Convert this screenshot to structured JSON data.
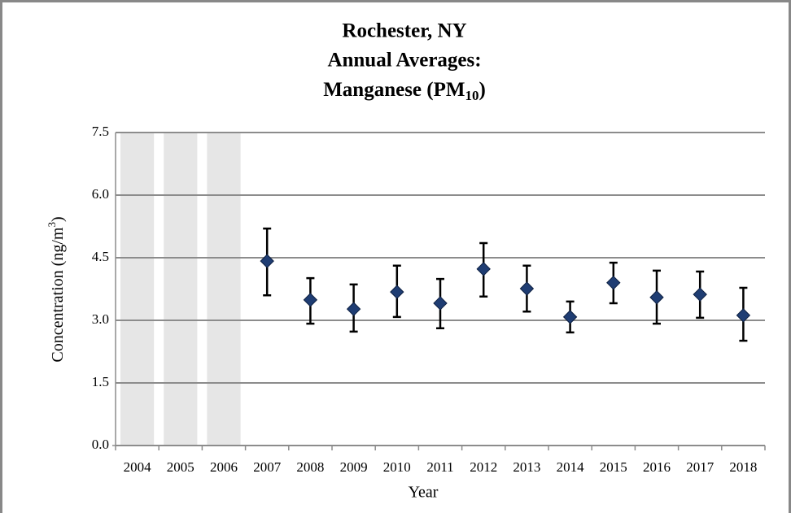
{
  "chart_data": {
    "type": "scatter",
    "title": [
      "Rochester, NY",
      "Annual Averages:",
      "Manganese (PM"
    ],
    "title_subscript": "10",
    "title_suffix": ")",
    "y_label": "Concentration (ng/m",
    "y_label_superscript": "3",
    "y_label_suffix": ")",
    "x_label": "Year",
    "categories": [
      "2004",
      "2005",
      "2006",
      "2007",
      "2008",
      "2009",
      "2010",
      "2011",
      "2012",
      "2013",
      "2014",
      "2015",
      "2016",
      "2017",
      "2018"
    ],
    "values": [
      null,
      null,
      null,
      4.42,
      3.49,
      3.27,
      3.68,
      3.41,
      4.23,
      3.76,
      3.08,
      3.9,
      3.55,
      3.62,
      3.12
    ],
    "error_low": [
      null,
      null,
      null,
      3.6,
      2.92,
      2.73,
      3.08,
      2.81,
      3.57,
      3.21,
      2.71,
      3.41,
      2.92,
      3.06,
      2.51
    ],
    "error_high": [
      null,
      null,
      null,
      5.2,
      4.01,
      3.86,
      4.31,
      3.99,
      4.85,
      4.31,
      3.45,
      4.38,
      4.19,
      4.17,
      3.78
    ],
    "color": "#1f3d73",
    "shading_color": "#e6e6e6",
    "ylim": [
      0,
      7.5
    ],
    "yticks": [
      {
        "value": 0,
        "label": "0.0"
      },
      1.5,
      {
        "value": 3,
        "label": "3.0"
      },
      4.5,
      {
        "value": 6,
        "label": "6.0"
      },
      7.5
    ],
    "grid": true
  }
}
